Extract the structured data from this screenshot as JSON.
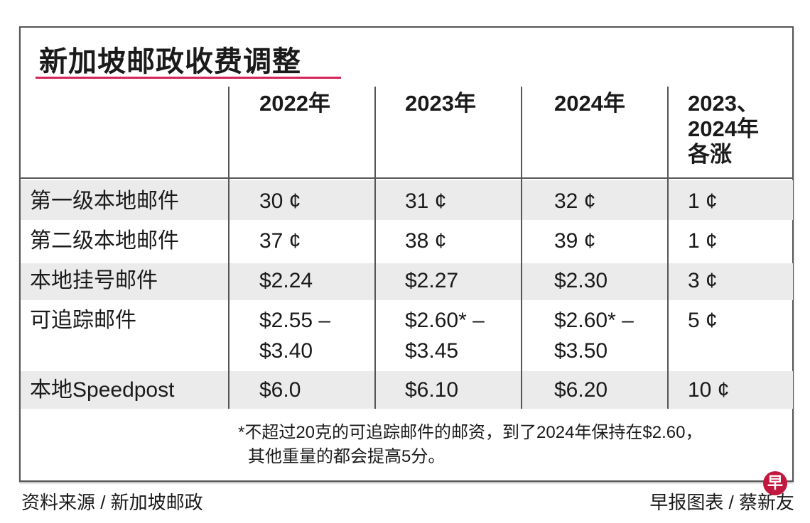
{
  "title": "新加坡邮政收费调整",
  "chart_data": {
    "type": "table",
    "title": "新加坡邮政收费调整",
    "columns": [
      "2022年",
      "2023年",
      "2024年",
      "2023、2024年各涨"
    ],
    "column_lines": [
      [
        "2022年"
      ],
      [
        "2023年"
      ],
      [
        "2024年"
      ],
      [
        "2023、",
        "2024年",
        "各涨"
      ]
    ],
    "rows": [
      {
        "label": "第一级本地邮件",
        "cells": [
          [
            "30 ¢"
          ],
          [
            "31 ¢"
          ],
          [
            "32 ¢"
          ],
          [
            "1 ¢"
          ]
        ]
      },
      {
        "label": "第二级本地邮件",
        "cells": [
          [
            "37 ¢"
          ],
          [
            "38 ¢"
          ],
          [
            "39 ¢"
          ],
          [
            "1 ¢"
          ]
        ]
      },
      {
        "label": "本地挂号邮件",
        "cells": [
          [
            "$2.24"
          ],
          [
            "$2.27"
          ],
          [
            "$2.30"
          ],
          [
            "3 ¢"
          ]
        ]
      },
      {
        "label": "可追踪邮件",
        "cells": [
          [
            "$2.55 –",
            "$3.40"
          ],
          [
            "$2.60* –",
            "$3.45"
          ],
          [
            "$2.60* –",
            "$3.50"
          ],
          [
            "5 ¢"
          ]
        ]
      },
      {
        "label": "本地Speedpost",
        "cells": [
          [
            "$6.0"
          ],
          [
            "$6.10"
          ],
          [
            "$6.20"
          ],
          [
            "10 ¢"
          ]
        ]
      }
    ]
  },
  "footnote": [
    "*不超过20克的可追踪邮件的邮资，到了2024年保持在$2.60，",
    "其他重量的都会提高5分。"
  ],
  "source": "资料来源 / 新加坡邮政",
  "credit": "早报图表 / 蔡新友",
  "logo_text": "早",
  "colors": {
    "accent": "#d4245a",
    "row_shade": "#ebebeb",
    "logo": "#c2173f"
  }
}
